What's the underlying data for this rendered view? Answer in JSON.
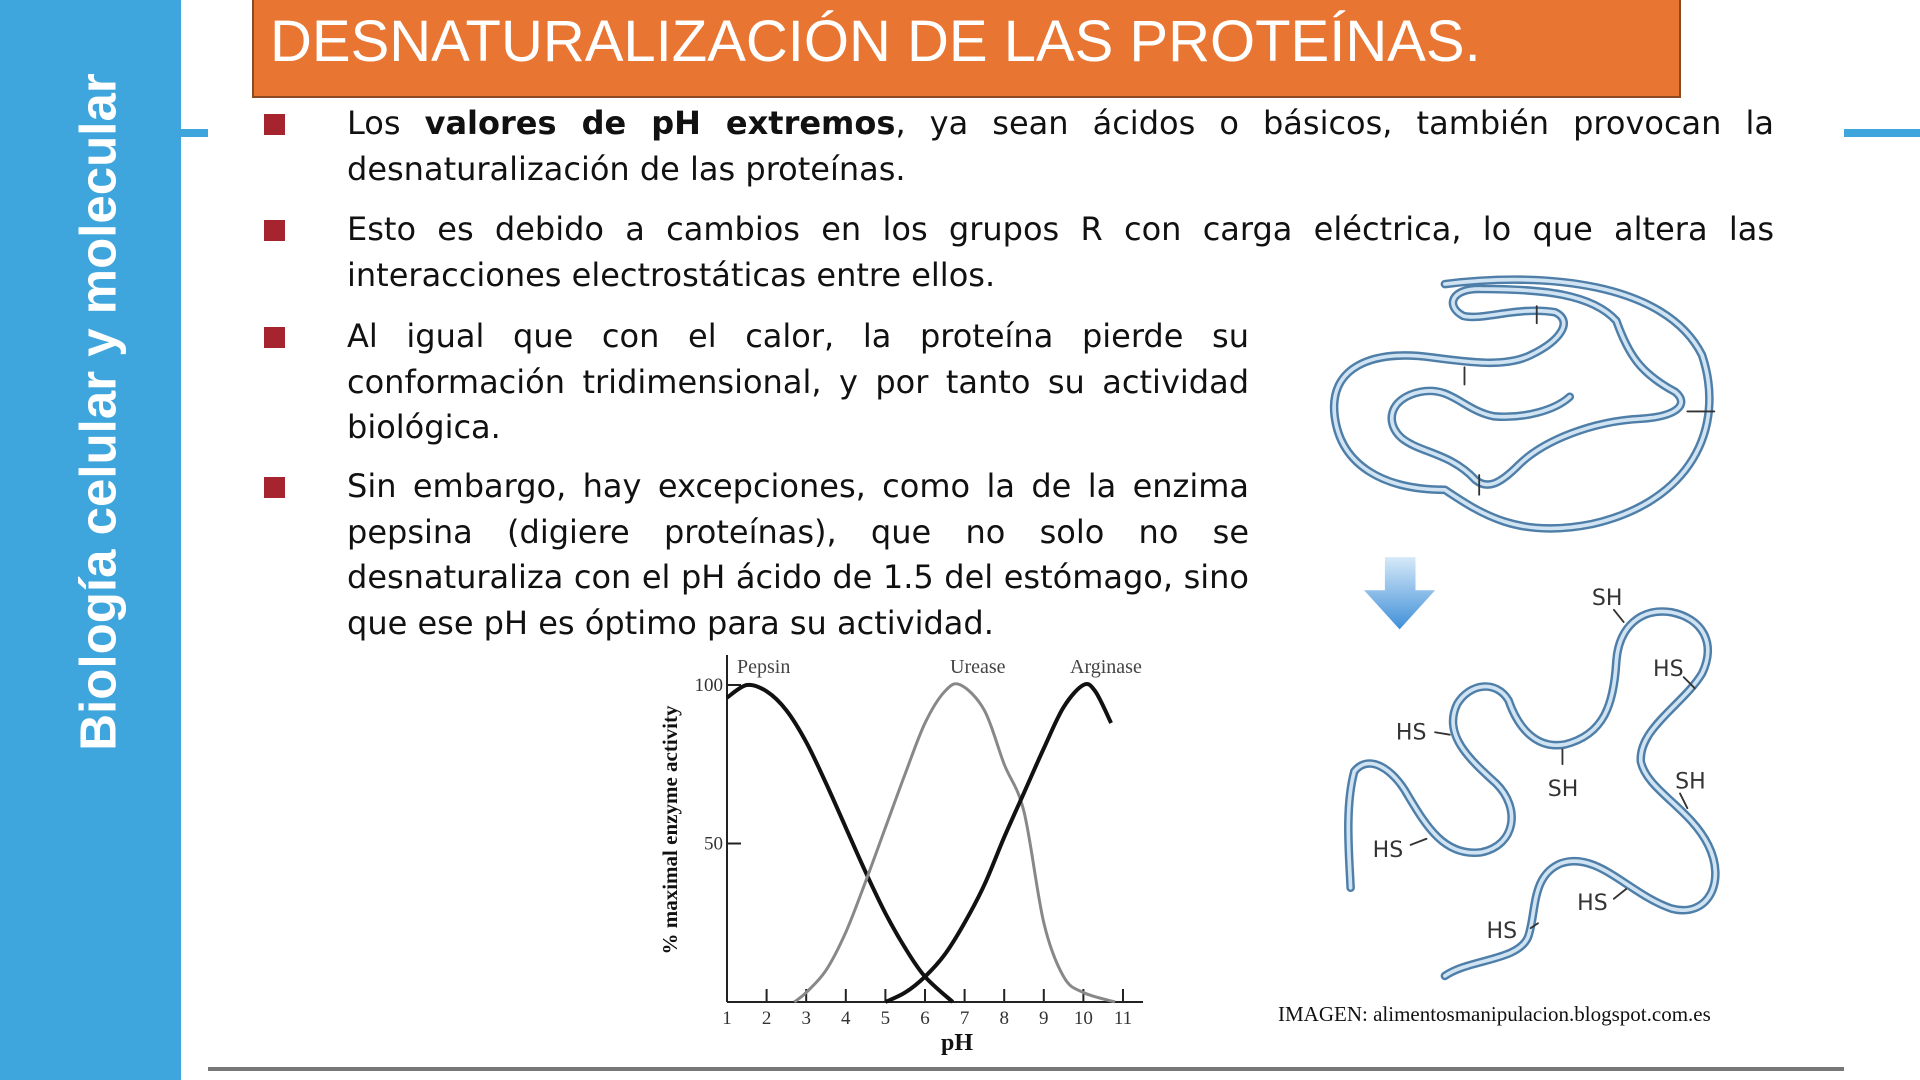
{
  "sidebar": {
    "title": "Biología celular y molecular"
  },
  "header": {
    "title": "DESNATURALIZACIÓN DE LAS PROTEÍNAS."
  },
  "bullets": [
    {
      "pre": "Los ",
      "bold": "valores de pH extremos",
      "post": ", ya sean ácidos o básicos, también provocan la desnaturalización de las proteínas."
    },
    {
      "text": "Esto es debido a cambios en los grupos R con carga eléctrica, lo que altera las interacciones electrostáticas entre ellos."
    },
    {
      "text": "Al igual que con el calor, la proteína pierde su conformación tridimensional, y por tanto su actividad biológica."
    },
    {
      "text": "Sin embargo, hay excepciones, como la de la enzima pepsina (digiere proteínas), que no solo no se desnaturaliza con el pH ácido de 1.5 del  estómago, sino que ese pH es óptimo para su actividad."
    }
  ],
  "colors": {
    "sidebar": "#3ea6dd",
    "title_bg": "#e87531",
    "bullet": "#a5242d",
    "protein": "#6d9fcc"
  },
  "protein_figure": {
    "labels": [
      "SH",
      "HS",
      "HS",
      "SH",
      "SH",
      "HS",
      "HS",
      "HS"
    ],
    "caption": "IMAGEN: alimentosmanipulacion.blogspot.com.es"
  },
  "chart_data": {
    "type": "line",
    "xlabel": "pH",
    "ylabel": "% maximal enzyme activity",
    "xlim": [
      1,
      11
    ],
    "ylim": [
      0,
      100
    ],
    "x_ticks": [
      "1",
      "2",
      "3",
      "4",
      "5",
      "6",
      "7",
      "8",
      "9",
      "10",
      "11"
    ],
    "y_ticks": [
      "50",
      "100"
    ],
    "grid": false,
    "series": [
      {
        "name": "Pepsin",
        "color": "#111111",
        "x": [
          1,
          1.5,
          2,
          2.5,
          3,
          3.5,
          4,
          4.5,
          5,
          5.5,
          6,
          6.7
        ],
        "y": [
          96,
          100,
          98,
          92,
          82,
          69,
          55,
          41,
          28,
          17,
          8,
          0
        ]
      },
      {
        "name": "Urease",
        "color": "#888888",
        "x": [
          2.7,
          3,
          3.5,
          4,
          4.5,
          5,
          5.5,
          6,
          6.5,
          6.9,
          7.5,
          8,
          8.5,
          9,
          9.5,
          10,
          10.8
        ],
        "y": [
          0,
          3,
          10,
          22,
          38,
          55,
          72,
          88,
          98,
          100,
          92,
          75,
          60,
          25,
          8,
          3,
          0
        ]
      },
      {
        "name": "Arginase",
        "color": "#111111",
        "x": [
          5,
          5.5,
          6,
          6.5,
          7,
          7.5,
          8,
          8.5,
          9,
          9.5,
          10,
          10.3,
          10.7
        ],
        "y": [
          0,
          3,
          8,
          15,
          25,
          37,
          52,
          66,
          80,
          93,
          100,
          98,
          88
        ]
      }
    ]
  }
}
